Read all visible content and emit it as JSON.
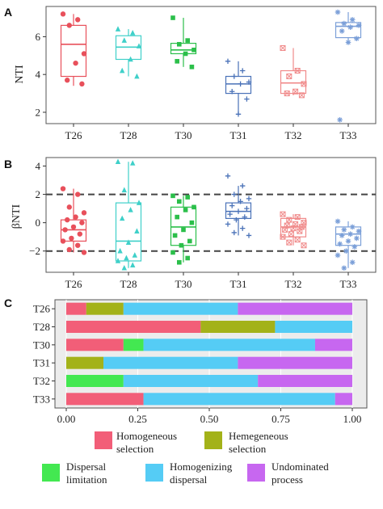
{
  "colors": {
    "T26": "#e8505b",
    "T28": "#3fd0c9",
    "T30": "#2bbf4a",
    "T31": "#4a72b8",
    "T32": "#f08a8a",
    "T33": "#7b9fd8",
    "Homogeneous selection": "#f25e78",
    "Hemegeneous selection": "#a3b219",
    "Dispersal limitation": "#43e851",
    "Homogenizing dispersal": "#55ccf5",
    "Undominated process": "#c767f0"
  },
  "chart_data": [
    {
      "panel": "A",
      "type": "box",
      "ylabel": "NTI",
      "categories": [
        "T26",
        "T28",
        "T30",
        "T31",
        "T32",
        "T33"
      ],
      "yticks": [
        2,
        4,
        6
      ],
      "ylim": [
        1.4,
        7.6
      ],
      "boxes": [
        {
          "name": "T26",
          "q1": 3.9,
          "median": 5.6,
          "q3": 6.6,
          "whisker_low": 3.4,
          "whisker_high": 7.2,
          "marker": "circle"
        },
        {
          "name": "T28",
          "q1": 4.8,
          "median": 5.45,
          "q3": 6.05,
          "whisker_low": 3.9,
          "whisker_high": 6.4,
          "marker": "triangle"
        },
        {
          "name": "T30",
          "q1": 5.1,
          "median": 5.3,
          "q3": 5.65,
          "whisker_low": 4.4,
          "whisker_high": 7.0,
          "marker": "square"
        },
        {
          "name": "T31",
          "q1": 3.0,
          "median": 3.5,
          "q3": 3.9,
          "whisker_low": 1.9,
          "whisker_high": 4.7,
          "marker": "plus"
        },
        {
          "name": "T32",
          "q1": 3.0,
          "median": 3.55,
          "q3": 4.2,
          "whisker_low": 2.9,
          "whisker_high": 5.4,
          "marker": "boxx"
        },
        {
          "name": "T33",
          "q1": 5.95,
          "median": 6.55,
          "q3": 6.75,
          "whisker_low": 5.6,
          "whisker_high": 7.3,
          "marker": "star"
        }
      ],
      "points": {
        "T26": [
          7.2,
          6.9,
          6.6,
          5.1,
          4.6,
          3.7,
          3.5
        ],
        "T28": [
          6.4,
          6.2,
          5.8,
          5.5,
          4.8,
          4.2,
          3.9
        ],
        "T30": [
          7.0,
          5.8,
          5.6,
          5.3,
          5.1,
          4.7,
          4.4
        ],
        "T31": [
          4.7,
          4.2,
          3.9,
          3.6,
          3.5,
          3.1,
          2.7,
          1.9
        ],
        "T32": [
          5.4,
          4.2,
          3.9,
          3.5,
          3.1,
          3.0,
          2.9
        ],
        "T33": [
          7.3,
          6.9,
          6.7,
          6.6,
          6.5,
          6.3,
          5.9,
          5.7,
          1.6
        ]
      }
    },
    {
      "panel": "B",
      "type": "box",
      "ylabel": "βNTI",
      "categories": [
        "T26",
        "T28",
        "T30",
        "T31",
        "T32",
        "T33"
      ],
      "yticks": [
        -2,
        0,
        2,
        4
      ],
      "ylim": [
        -3.5,
        4.6
      ],
      "reference_lines": [
        2,
        -2
      ],
      "boxes": [
        {
          "name": "T26",
          "q1": -1.3,
          "median": -0.5,
          "q3": 0.2,
          "whisker_low": -2.1,
          "whisker_high": 2.4,
          "marker": "circle"
        },
        {
          "name": "T28",
          "q1": -2.7,
          "median": -1.3,
          "q3": 1.4,
          "whisker_low": -3.2,
          "whisker_high": 4.3,
          "marker": "triangle"
        },
        {
          "name": "T30",
          "q1": -1.6,
          "median": -0.3,
          "q3": 1.1,
          "whisker_low": -2.8,
          "whisker_high": 1.9,
          "marker": "square"
        },
        {
          "name": "T31",
          "q1": 0.3,
          "median": 0.8,
          "q3": 1.4,
          "whisker_low": -0.9,
          "whisker_high": 2.6,
          "marker": "plus"
        },
        {
          "name": "T32",
          "q1": -1.0,
          "median": -0.3,
          "q3": 0.3,
          "whisker_low": -1.6,
          "whisker_high": 0.6,
          "marker": "boxx"
        },
        {
          "name": "T33",
          "q1": -1.6,
          "median": -0.8,
          "q3": -0.3,
          "whisker_low": -3.2,
          "whisker_high": 0.1,
          "marker": "star"
        }
      ],
      "points": {
        "T26": [
          2.4,
          2.0,
          1.1,
          0.7,
          0.4,
          0.2,
          0.0,
          -0.3,
          -0.5,
          -0.8,
          -1.1,
          -1.3,
          -1.6,
          -1.9,
          -2.1
        ],
        "T28": [
          4.3,
          4.2,
          2.3,
          1.4,
          0.9,
          0.3,
          -0.6,
          -1.4,
          -2.0,
          -2.3,
          -2.5,
          -2.7,
          -3.0,
          -3.2
        ],
        "T30": [
          1.9,
          1.8,
          1.5,
          1.1,
          0.9,
          0.4,
          0.0,
          -0.5,
          -0.9,
          -1.3,
          -1.6,
          -2.1,
          -2.5,
          -2.8
        ],
        "T31": [
          3.3,
          2.6,
          2.0,
          1.7,
          1.5,
          1.2,
          1.0,
          0.8,
          0.6,
          0.4,
          0.2,
          -0.1,
          -0.4,
          -0.7,
          -0.9
        ],
        "T32": [
          0.6,
          0.4,
          0.2,
          0.0,
          -0.1,
          -0.2,
          -0.3,
          -0.4,
          -0.5,
          -0.6,
          -0.8,
          -1.0,
          -1.2,
          -1.4,
          -1.6
        ],
        "T33": [
          0.1,
          -0.3,
          -0.5,
          -0.6,
          -0.8,
          -0.9,
          -1.1,
          -1.3,
          -1.5,
          -1.7,
          -2.0,
          -2.3,
          -2.8,
          -3.2
        ]
      }
    },
    {
      "panel": "C",
      "type": "stacked_bar_horizontal",
      "categories": [
        "T26",
        "T28",
        "T30",
        "T31",
        "T32",
        "T33"
      ],
      "xticks": [
        "0.00",
        "0.25",
        "0.50",
        "0.75",
        "1.00"
      ],
      "xlim": [
        0,
        1
      ],
      "series": [
        {
          "name": "Homogeneous selection",
          "legend_label": [
            "Homogeneous",
            "selection"
          ],
          "values": [
            0.07,
            0.47,
            0.2,
            0.0,
            0.0,
            0.27
          ]
        },
        {
          "name": "Hemegeneous selection",
          "legend_label": [
            "Hemegeneous",
            "selection"
          ],
          "values": [
            0.13,
            0.26,
            0.0,
            0.13,
            0.0,
            0.0
          ]
        },
        {
          "name": "Dispersal limitation",
          "legend_label": [
            "Dispersal",
            "limitation"
          ],
          "values": [
            0.0,
            0.0,
            0.07,
            0.0,
            0.2,
            0.0
          ]
        },
        {
          "name": "Homogenizing dispersal",
          "legend_label": [
            "Homogenizing",
            "dispersal"
          ],
          "values": [
            0.4,
            0.27,
            0.6,
            0.47,
            0.47,
            0.67
          ]
        },
        {
          "name": "Undominated process",
          "legend_label": [
            "Undominated",
            "process"
          ],
          "values": [
            0.4,
            0.0,
            0.13,
            0.4,
            0.33,
            0.06
          ]
        }
      ]
    }
  ],
  "panel_letters": [
    "A",
    "B",
    "C"
  ]
}
